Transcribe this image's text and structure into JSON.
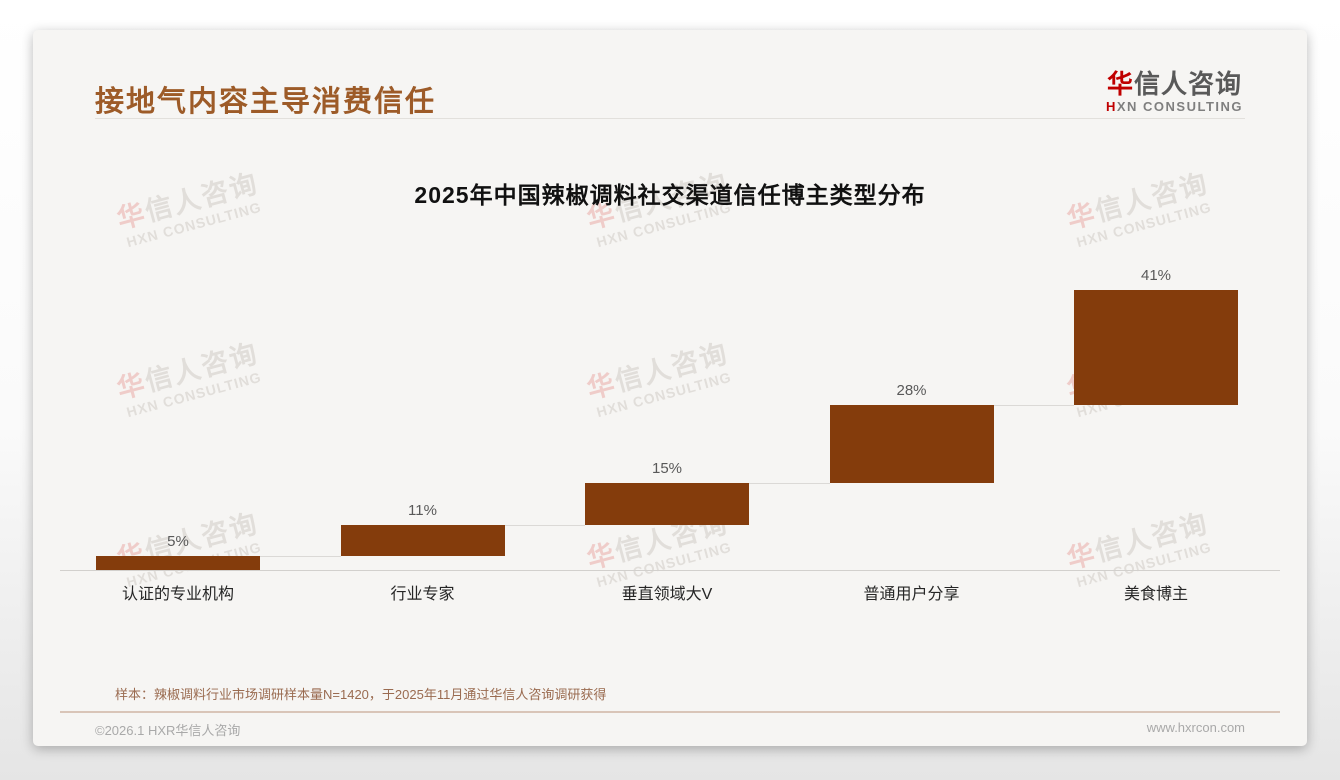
{
  "page": {
    "slide_title": "接地气内容主导消费信任",
    "logo": {
      "cn_first": "华",
      "cn_rest": "信人咨询",
      "en_first": "H",
      "en_rest": "XN CONSULTING"
    },
    "watermark": {
      "cn_first": "华",
      "cn_rest": "信人咨询",
      "en": "HXN CONSULTING"
    },
    "footnote": "样本：辣椒调料行业市场调研样本量N=1420，于2025年11月通过华信人咨询调研获得",
    "footer_left": "©2026.1 HXR华信人咨询",
    "footer_right": "www.hxrcon.com"
  },
  "colors": {
    "accent_brown": "#9d5b28",
    "bar_brown": "#843c0c",
    "logo_red": "#c00000"
  },
  "chart_data": {
    "type": "bar",
    "subtype": "waterfall",
    "title": "2025年中国辣椒调料社交渠道信任博主类型分布",
    "categories": [
      "认证的专业机构",
      "行业专家",
      "垂直领域大V",
      "普通用户分享",
      "美食博主"
    ],
    "values": [
      5,
      11,
      15,
      28,
      41
    ],
    "value_labels": [
      "5%",
      "11%",
      "15%",
      "28%",
      "41%"
    ],
    "cumulative": [
      5,
      16,
      31,
      59,
      100
    ],
    "bar_color": "#843c0c",
    "xlabel": "",
    "ylabel": "",
    "ylim": [
      0,
      100
    ],
    "grid": false,
    "legend": false
  }
}
